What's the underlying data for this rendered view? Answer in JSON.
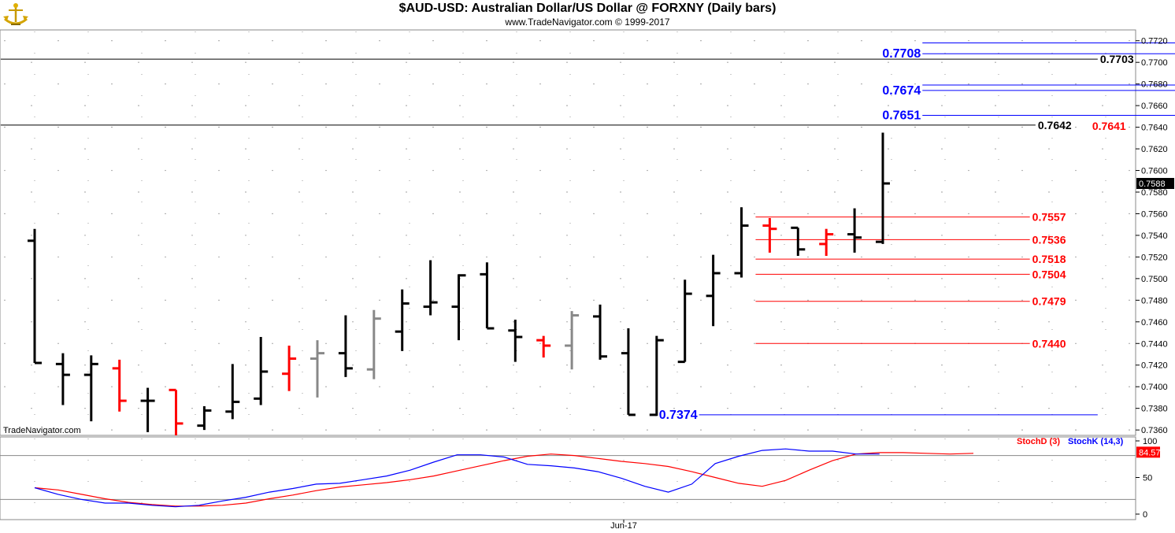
{
  "header": {
    "title": "$AUD-USD:  Australian Dollar/US Dollar @ FORXNY  (Daily bars)",
    "subtitle": "www.TradeNavigator.com © 1999-2017",
    "watermark": "TradeNavigator.com"
  },
  "chart_data": [
    {
      "type": "ohlc",
      "title": "$AUD-USD:  Australian Dollar/US Dollar @ FORXNY  (Daily bars)",
      "x_tick_labels": [
        "Jun-17"
      ],
      "ylim": [
        0.7355,
        0.773
      ],
      "y_ticks": [
        "0.7720",
        "0.7700",
        "0.7680",
        "0.7660",
        "0.7640",
        "0.7620",
        "0.7600",
        "0.7580",
        "0.7560",
        "0.7540",
        "0.7520",
        "0.7500",
        "0.7480",
        "0.7460",
        "0.7440",
        "0.7420",
        "0.7400",
        "0.7380",
        "0.7360"
      ],
      "last_price": "0.7588",
      "bars": [
        {
          "o": 0.7535,
          "h": 0.7546,
          "l": 0.7422,
          "c": 0.7422,
          "color": "#000000"
        },
        {
          "o": 0.7421,
          "h": 0.7431,
          "l": 0.7383,
          "c": 0.7411,
          "color": "#000000"
        },
        {
          "o": 0.7411,
          "h": 0.7429,
          "l": 0.7368,
          "c": 0.7421,
          "color": "#000000"
        },
        {
          "o": 0.7417,
          "h": 0.7425,
          "l": 0.7377,
          "c": 0.7387,
          "color": "#ff0000"
        },
        {
          "o": 0.7387,
          "h": 0.7399,
          "l": 0.7358,
          "c": 0.7387,
          "color": "#000000"
        },
        {
          "o": 0.7397,
          "h": 0.7397,
          "l": 0.7355,
          "c": 0.7366,
          "color": "#ff0000"
        },
        {
          "o": 0.7364,
          "h": 0.7382,
          "l": 0.736,
          "c": 0.7378,
          "color": "#000000"
        },
        {
          "o": 0.7377,
          "h": 0.7421,
          "l": 0.737,
          "c": 0.7386,
          "color": "#000000"
        },
        {
          "o": 0.7389,
          "h": 0.7446,
          "l": 0.7383,
          "c": 0.7414,
          "color": "#000000"
        },
        {
          "o": 0.7412,
          "h": 0.7438,
          "l": 0.7396,
          "c": 0.7426,
          "color": "#ff0000"
        },
        {
          "o": 0.7426,
          "h": 0.7443,
          "l": 0.739,
          "c": 0.7431,
          "color": "#888888"
        },
        {
          "o": 0.7431,
          "h": 0.7466,
          "l": 0.7409,
          "c": 0.7417,
          "color": "#000000"
        },
        {
          "o": 0.7416,
          "h": 0.7471,
          "l": 0.7407,
          "c": 0.7463,
          "color": "#888888"
        },
        {
          "o": 0.7451,
          "h": 0.749,
          "l": 0.7433,
          "c": 0.7477,
          "color": "#000000"
        },
        {
          "o": 0.7474,
          "h": 0.7517,
          "l": 0.7466,
          "c": 0.7478,
          "color": "#000000"
        },
        {
          "o": 0.7474,
          "h": 0.7504,
          "l": 0.7443,
          "c": 0.7503,
          "color": "#000000"
        },
        {
          "o": 0.7504,
          "h": 0.7515,
          "l": 0.7454,
          "c": 0.7454,
          "color": "#000000"
        },
        {
          "o": 0.7452,
          "h": 0.7462,
          "l": 0.7423,
          "c": 0.7446,
          "color": "#000000"
        },
        {
          "o": 0.7443,
          "h": 0.7447,
          "l": 0.7427,
          "c": 0.7438,
          "color": "#ff0000"
        },
        {
          "o": 0.7438,
          "h": 0.747,
          "l": 0.7416,
          "c": 0.7466,
          "color": "#888888"
        },
        {
          "o": 0.7465,
          "h": 0.7476,
          "l": 0.7425,
          "c": 0.7428,
          "color": "#000000"
        },
        {
          "o": 0.7431,
          "h": 0.7454,
          "l": 0.7374,
          "c": 0.7374,
          "color": "#000000"
        },
        {
          "o": 0.7374,
          "h": 0.7447,
          "l": 0.7373,
          "c": 0.7443,
          "color": "#000000"
        },
        {
          "o": 0.7423,
          "h": 0.7499,
          "l": 0.7423,
          "c": 0.7486,
          "color": "#000000"
        },
        {
          "o": 0.7484,
          "h": 0.7522,
          "l": 0.7456,
          "c": 0.7505,
          "color": "#000000"
        },
        {
          "o": 0.7505,
          "h": 0.7566,
          "l": 0.7501,
          "c": 0.7549,
          "color": "#000000"
        },
        {
          "o": 0.7549,
          "h": 0.7556,
          "l": 0.7524,
          "c": 0.7546,
          "color": "#ff0000"
        },
        {
          "o": 0.7547,
          "h": 0.7547,
          "l": 0.7521,
          "c": 0.7527,
          "color": "#000000"
        },
        {
          "o": 0.7532,
          "h": 0.7546,
          "l": 0.7521,
          "c": 0.7541,
          "color": "#ff0000"
        },
        {
          "o": 0.7541,
          "h": 0.7565,
          "l": 0.7524,
          "c": 0.7538,
          "color": "#000000"
        },
        {
          "o": 0.7534,
          "h": 0.7635,
          "l": 0.7532,
          "c": 0.7588,
          "color": "#000000"
        }
      ],
      "levels": [
        {
          "label": "0.7718",
          "value": 0.7718,
          "color": "#0000ff",
          "line_from": 31.4,
          "line_to": 40.5,
          "label_side": "right",
          "bold": true,
          "size": 16
        },
        {
          "label": "0.7708",
          "value": 0.7708,
          "color": "#0000ff",
          "line_from": 31.4,
          "line_to": 40.5,
          "label_side": "left",
          "bold": true,
          "size": 16
        },
        {
          "label": "0.7703",
          "value": 0.7703,
          "color": "#000000",
          "line_from": -1.2,
          "line_to": 37.6,
          "label_side": "right",
          "bold": true,
          "size": 14
        },
        {
          "label": "0.7679",
          "value": 0.7679,
          "color": "#0000ff",
          "line_from": 31.4,
          "line_to": 40.5,
          "label_side": "right",
          "bold": true,
          "size": 16
        },
        {
          "label": "0.7674",
          "value": 0.7674,
          "color": "#0000ff",
          "line_from": 31.4,
          "line_to": 40.5,
          "label_side": "left",
          "bold": true,
          "size": 16
        },
        {
          "label": "0.7651",
          "value": 0.7651,
          "color": "#0000ff",
          "line_from": 31.4,
          "line_to": 40.5,
          "label_side": "left",
          "bold": true,
          "size": 16
        },
        {
          "label": "0.7642",
          "value": 0.7642,
          "color": "#000000",
          "line_from": -1.2,
          "line_to": 35.4,
          "label_side": "right",
          "bold": true,
          "size": 14
        },
        {
          "label": "0.7641",
          "value": 0.7641,
          "color": "#ff0000",
          "line_from": 35.4,
          "line_to": 35.4,
          "label_side": "right",
          "bold": true,
          "size": 14
        },
        {
          "label": "0.7557",
          "value": 0.7557,
          "color": "#ff0000",
          "line_from": 25.5,
          "line_to": 35.2,
          "label_side": "right",
          "bold": true,
          "size": 14
        },
        {
          "label": "0.7536",
          "value": 0.7536,
          "color": "#ff0000",
          "line_from": 25.5,
          "line_to": 35.2,
          "label_side": "right",
          "bold": true,
          "size": 14
        },
        {
          "label": "0.7518",
          "value": 0.7518,
          "color": "#ff0000",
          "line_from": 25.5,
          "line_to": 35.2,
          "label_side": "right",
          "bold": true,
          "size": 14
        },
        {
          "label": "0.7504",
          "value": 0.7504,
          "color": "#ff0000",
          "line_from": 25.5,
          "line_to": 35.2,
          "label_side": "right",
          "bold": true,
          "size": 14
        },
        {
          "label": "0.7479",
          "value": 0.7479,
          "color": "#ff0000",
          "line_from": 25.5,
          "line_to": 35.2,
          "label_side": "right",
          "bold": true,
          "size": 14
        },
        {
          "label": "0.7440",
          "value": 0.744,
          "color": "#ff0000",
          "line_from": 25.5,
          "line_to": 35.2,
          "label_side": "right",
          "bold": true,
          "size": 14
        },
        {
          "label": "0.7374",
          "value": 0.7374,
          "color": "#0000ff",
          "line_from": 23.5,
          "line_to": 37.6,
          "label_side": "left",
          "bold": true,
          "size": 16
        }
      ]
    },
    {
      "type": "line",
      "title": "",
      "ylim": [
        0,
        100
      ],
      "y_ticks": [
        "100",
        "50",
        "0"
      ],
      "guide_levels": [
        80,
        20
      ],
      "last_value": "84.57",
      "series": [
        {
          "name": "StochD (3)",
          "color": "#ff0000",
          "values": [
            36,
            33,
            27,
            21,
            16,
            13,
            11,
            11,
            12,
            15,
            21,
            26,
            32,
            37,
            40,
            43,
            47,
            52,
            59,
            66,
            73,
            79,
            82,
            80,
            76,
            72,
            69,
            65,
            58,
            50,
            42,
            38,
            46,
            60,
            73,
            82,
            84,
            84,
            83,
            82,
            83
          ]
        },
        {
          "name": "StochK (14,3)",
          "color": "#0000ff",
          "values": [
            36,
            27,
            20,
            15,
            15,
            12,
            10,
            12,
            18,
            23,
            30,
            35,
            41,
            42,
            47,
            52,
            60,
            71,
            81,
            81,
            78,
            68,
            66,
            63,
            58,
            49,
            38,
            30,
            41,
            69,
            79,
            87,
            89,
            86,
            86,
            82,
            82
          ]
        }
      ]
    }
  ]
}
